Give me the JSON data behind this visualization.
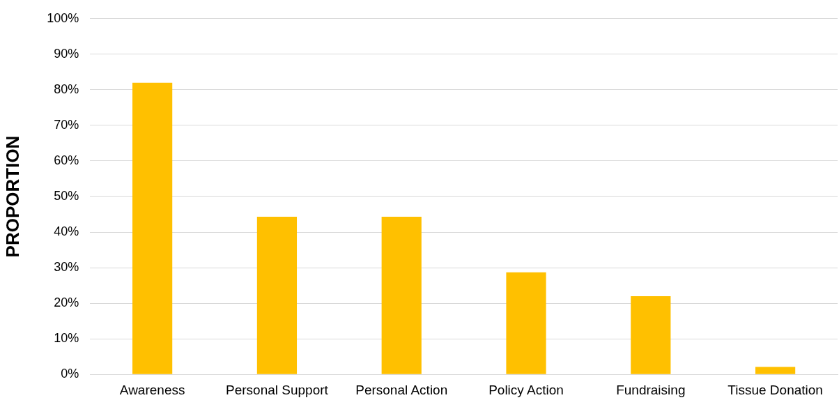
{
  "chart_data": {
    "type": "bar",
    "ylabel": "PROPORTION",
    "categories": [
      "Awareness",
      "Personal Support",
      "Personal Action",
      "Policy Action",
      "Fundraising",
      "Tissue Donation"
    ],
    "values": [
      82,
      44.3,
      44.3,
      28.7,
      22,
      2.1
    ],
    "color": "#ffc000",
    "ylim": [
      0,
      100
    ],
    "yticks": [
      {
        "value": 0,
        "label": "0%"
      },
      {
        "value": 10,
        "label": "10%"
      },
      {
        "value": 20,
        "label": "20%"
      },
      {
        "value": 30,
        "label": "30%"
      },
      {
        "value": 40,
        "label": "40%"
      },
      {
        "value": 50,
        "label": "50%"
      },
      {
        "value": 60,
        "label": "60%"
      },
      {
        "value": 70,
        "label": "70%"
      },
      {
        "value": 80,
        "label": "80%"
      },
      {
        "value": 90,
        "label": "90%"
      },
      {
        "value": 100,
        "label": "100%"
      }
    ],
    "grid": "y"
  }
}
